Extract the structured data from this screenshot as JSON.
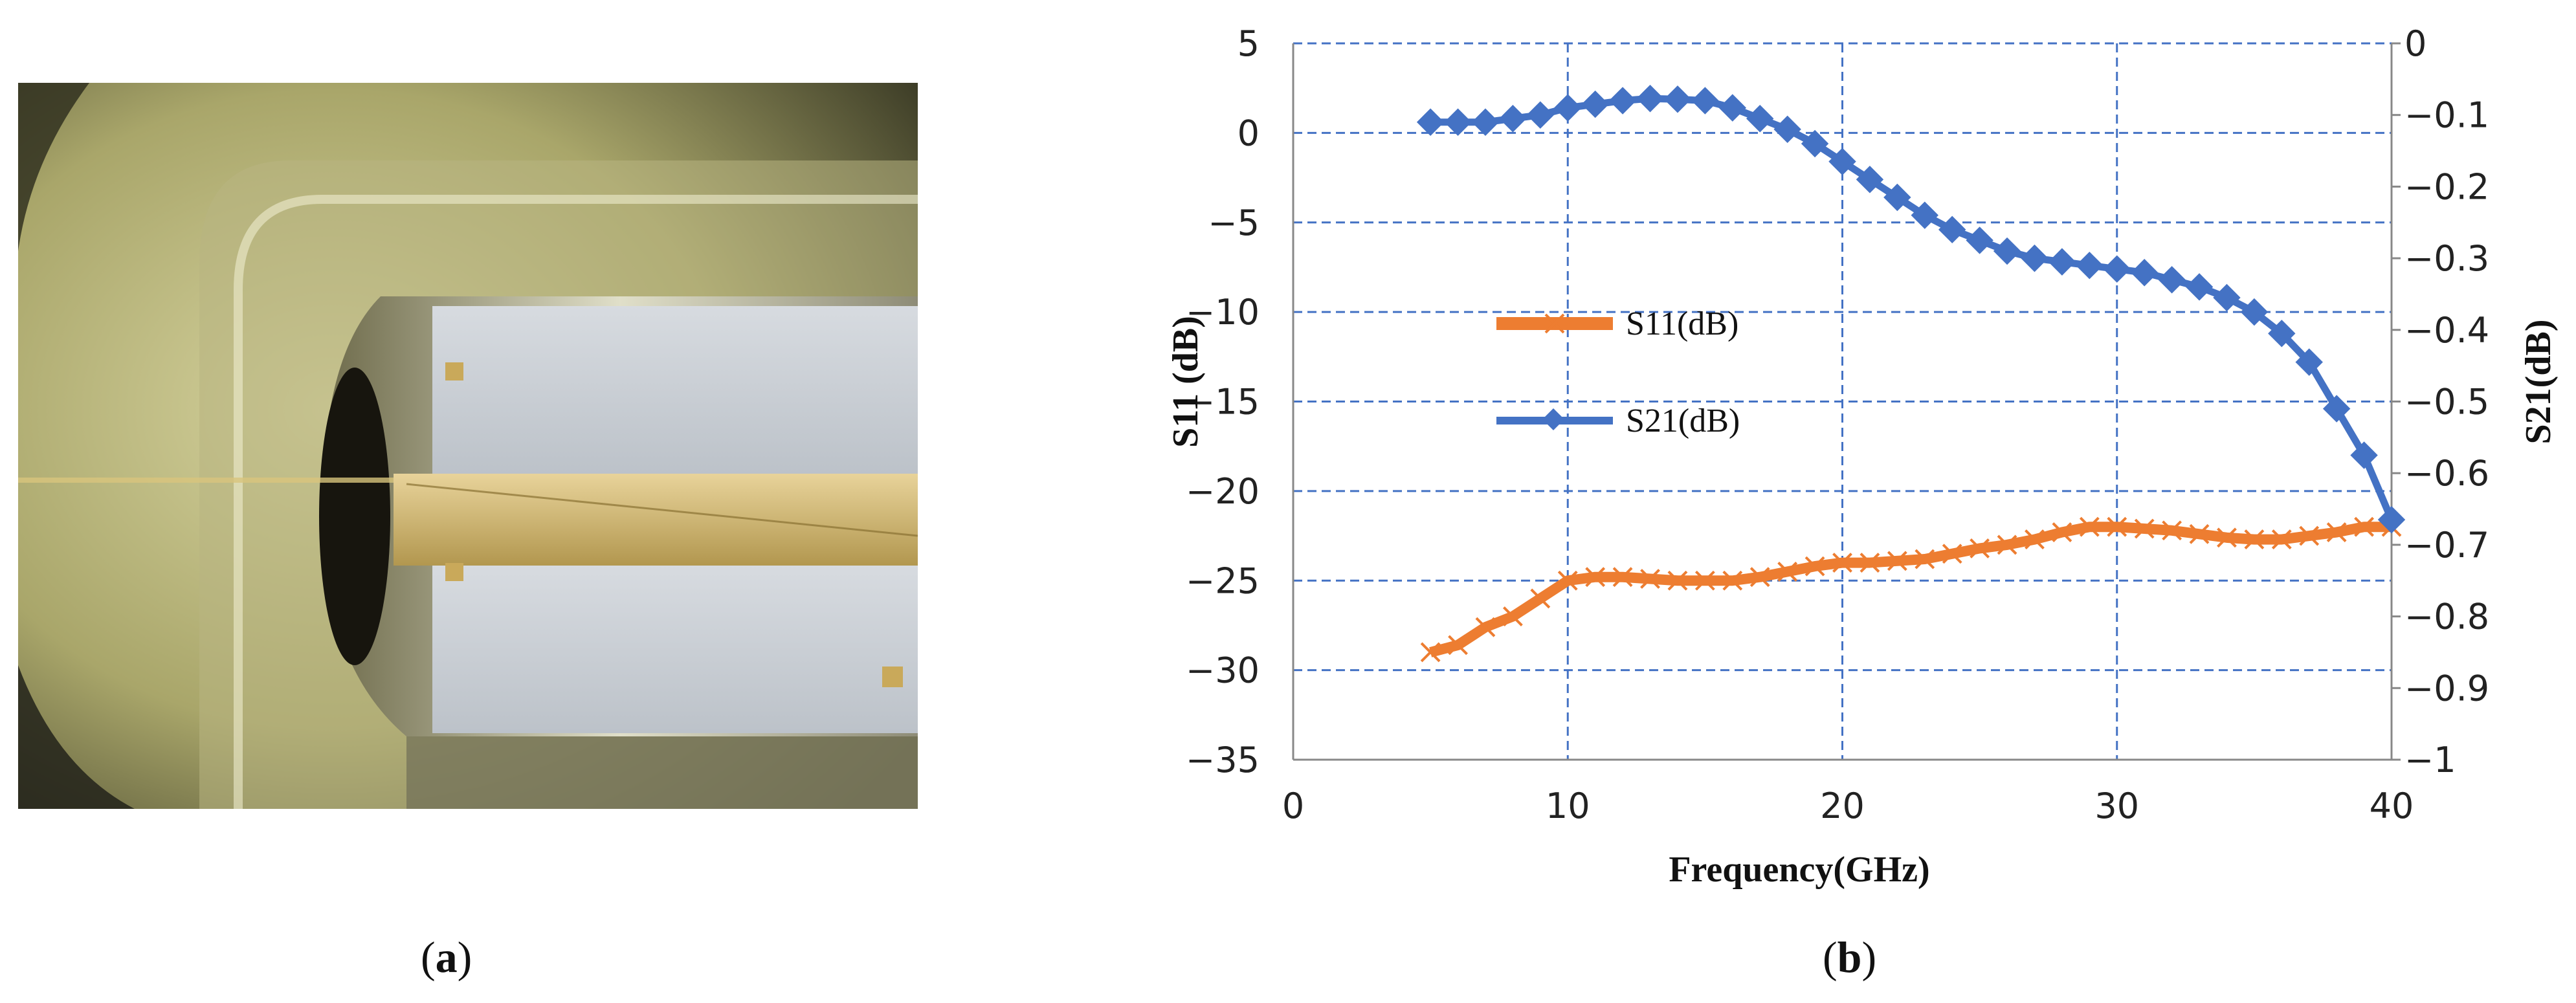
{
  "captions": {
    "a": "a",
    "b": "b"
  },
  "photo": {
    "subject": "photo"
  },
  "chart_data": {
    "type": "line",
    "title": "",
    "xlabel": "Frequency(GHz)",
    "ylabel_left": "S11  (dB)",
    "ylabel_right": "S21(dB)",
    "xlim": [
      0,
      40
    ],
    "xticks": [
      0,
      10,
      20,
      30,
      40
    ],
    "ylim_left": [
      -35,
      5
    ],
    "yticks_left": [
      5,
      0,
      -5,
      -10,
      -15,
      -20,
      -25,
      -30,
      -35
    ],
    "ylim_right": [
      -1,
      0
    ],
    "yticks_right": [
      0,
      -0.1,
      -0.2,
      -0.3,
      -0.4,
      -0.5,
      -0.6,
      -0.7,
      -0.8,
      -0.9,
      -1
    ],
    "ytick_labels_left": [
      "5",
      "0",
      "−5",
      "−10",
      "−15",
      "−20",
      "−25",
      "−30",
      "−35"
    ],
    "ytick_labels_right": [
      "0",
      "−0.1",
      "−0.2",
      "−0.3",
      "−0.4",
      "−0.5",
      "−0.6",
      "−0.7",
      "−0.8",
      "−0.9",
      "−1"
    ],
    "grid": true,
    "legend_position": "middle-left",
    "series": [
      {
        "name": "S11(dB)",
        "axis": "left",
        "color": "#ed7d31",
        "marker": "x",
        "x": [
          5,
          6,
          7,
          8,
          9,
          10,
          11,
          12,
          13,
          14,
          15,
          16,
          17,
          18,
          19,
          20,
          21,
          22,
          23,
          24,
          25,
          26,
          27,
          28,
          29,
          30,
          31,
          32,
          33,
          34,
          35,
          36,
          37,
          38,
          39,
          40
        ],
        "y": [
          -29,
          -28.6,
          -27.6,
          -27,
          -26,
          -25,
          -24.8,
          -24.8,
          -24.9,
          -25,
          -25,
          -25,
          -24.8,
          -24.5,
          -24.2,
          -24,
          -24,
          -23.9,
          -23.8,
          -23.5,
          -23.2,
          -23,
          -22.7,
          -22.3,
          -22,
          -22,
          -22.1,
          -22.2,
          -22.4,
          -22.6,
          -22.7,
          -22.7,
          -22.5,
          -22.3,
          -22,
          -22
        ]
      },
      {
        "name": "S21(dB)",
        "axis": "right",
        "color": "#4472c4",
        "marker": "diamond",
        "x": [
          5,
          6,
          7,
          8,
          9,
          10,
          11,
          12,
          13,
          14,
          15,
          16,
          17,
          18,
          19,
          20,
          21,
          22,
          23,
          24,
          25,
          26,
          27,
          28,
          29,
          30,
          31,
          32,
          33,
          34,
          35,
          36,
          37,
          38,
          39,
          40
        ],
        "y": [
          -0.11,
          -0.11,
          -0.11,
          -0.105,
          -0.1,
          -0.09,
          -0.085,
          -0.08,
          -0.077,
          -0.078,
          -0.08,
          -0.09,
          -0.105,
          -0.12,
          -0.14,
          -0.165,
          -0.19,
          -0.215,
          -0.24,
          -0.26,
          -0.275,
          -0.29,
          -0.3,
          -0.305,
          -0.31,
          -0.315,
          -0.32,
          -0.33,
          -0.34,
          -0.355,
          -0.375,
          -0.405,
          -0.445,
          -0.51,
          -0.575,
          -0.665
        ]
      }
    ]
  }
}
